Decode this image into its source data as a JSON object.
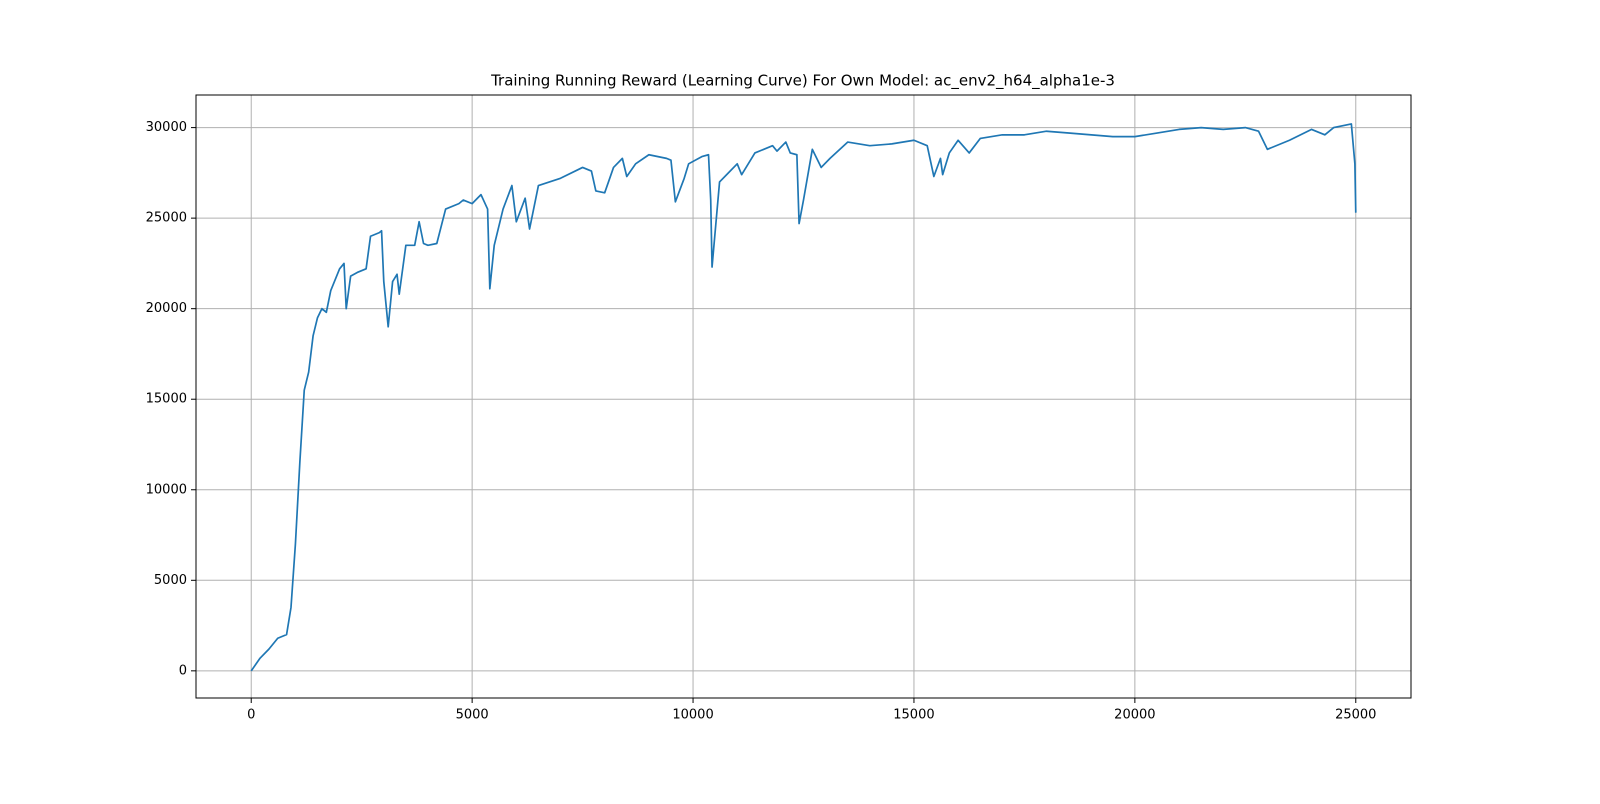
{
  "chart_data": {
    "type": "line",
    "title": "Training Running Reward (Learning Curve) For Own Model: ac_env2_h64_alpha1e-3",
    "x": [
      0,
      200,
      400,
      600,
      800,
      900,
      1000,
      1100,
      1200,
      1300,
      1400,
      1500,
      1600,
      1700,
      1800,
      2000,
      2100,
      2150,
      2250,
      2400,
      2600,
      2700,
      2900,
      2950,
      3000,
      3100,
      3200,
      3300,
      3350,
      3500,
      3700,
      3800,
      3900,
      4000,
      4200,
      4400,
      4700,
      4800,
      5000,
      5200,
      5350,
      5400,
      5500,
      5700,
      5900,
      6000,
      6200,
      6300,
      6500,
      7000,
      7500,
      7700,
      7800,
      8000,
      8200,
      8400,
      8500,
      8700,
      9000,
      9400,
      9500,
      9600,
      9800,
      9900,
      10200,
      10350,
      10400,
      10430,
      10600,
      10800,
      11000,
      11100,
      11400,
      11800,
      11900,
      12100,
      12200,
      12350,
      12400,
      12500,
      12700,
      12900,
      13100,
      13500,
      14000,
      14500,
      15000,
      15300,
      15450,
      15600,
      15650,
      15800,
      16000,
      16250,
      16500,
      17000,
      17500,
      18000,
      18500,
      19500,
      20000,
      20500,
      21000,
      21500,
      22000,
      22500,
      22800,
      23000,
      23500,
      24000,
      24300,
      24500,
      24900,
      24980,
      25000
    ],
    "series": [
      {
        "color": "#1f77b4",
        "values": [
          0,
          700,
          1200,
          1800,
          2000,
          3500,
          7000,
          11500,
          15500,
          16500,
          18500,
          19500,
          20000,
          19800,
          21000,
          22200,
          22500,
          20000,
          21800,
          22000,
          22200,
          24000,
          24200,
          24300,
          21500,
          19000,
          21500,
          21900,
          20800,
          23500,
          23500,
          24800,
          23600,
          23500,
          23600,
          25500,
          25800,
          26000,
          25800,
          26300,
          25500,
          21100,
          23500,
          25500,
          26800,
          24800,
          26100,
          24400,
          26800,
          27200,
          27800,
          27600,
          26500,
          26400,
          27800,
          28300,
          27300,
          28000,
          28500,
          28300,
          28200,
          25900,
          27200,
          28000,
          28400,
          28500,
          26000,
          22300,
          27000,
          27500,
          28000,
          27400,
          28600,
          29000,
          28700,
          29200,
          28600,
          28500,
          24700,
          26000,
          28800,
          27800,
          28300,
          29200,
          29000,
          29100,
          29300,
          29000,
          27300,
          28300,
          27400,
          28600,
          29300,
          28600,
          29400,
          29600,
          29600,
          29800,
          29700,
          29500,
          29500,
          29700,
          29900,
          30000,
          29900,
          30000,
          29800,
          28800,
          29300,
          29900,
          29600,
          30000,
          30200,
          28000,
          25300
        ]
      }
    ],
    "xlim": [
      -1250,
      26250
    ],
    "ylim": [
      -1500,
      31800
    ],
    "xticks": [
      0,
      5000,
      10000,
      15000,
      20000,
      25000
    ],
    "yticks": [
      0,
      5000,
      10000,
      15000,
      20000,
      25000,
      30000
    ],
    "grid": true
  }
}
